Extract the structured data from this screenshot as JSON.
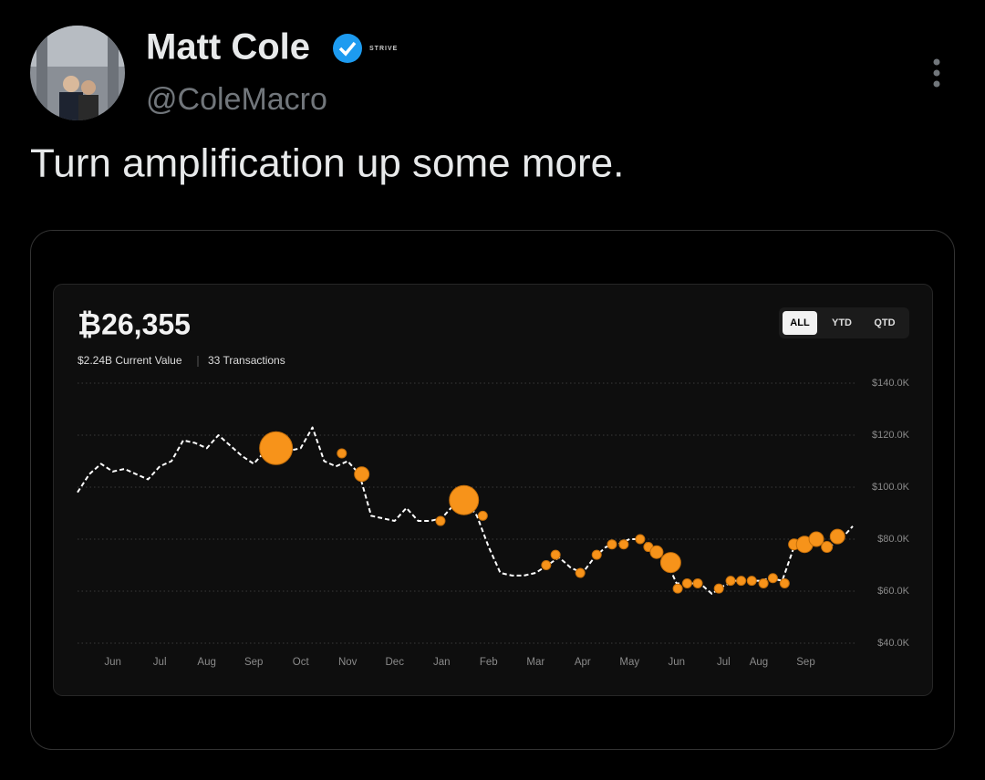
{
  "tweet": {
    "name": "Matt Cole",
    "badge": "STRIVE",
    "handle": "@ColeMacro",
    "text": "Turn amplification up some more."
  },
  "chart_data": {
    "type": "line",
    "title": "₿26,355",
    "subtitle_value": "$2.24B Current Value",
    "subtitle_count": "33 Transactions",
    "range_buttons": [
      "ALL",
      "YTD",
      "QTD"
    ],
    "selected_range": "ALL",
    "categories": [
      null,
      null,
      null,
      "Jun",
      null,
      null,
      null,
      "Jul",
      null,
      null,
      null,
      "Aug",
      null,
      null,
      null,
      "Sep",
      null,
      null,
      null,
      "Oct",
      null,
      null,
      null,
      "Nov",
      null,
      null,
      null,
      "Dec",
      null,
      null,
      null,
      "Jan",
      null,
      null,
      null,
      "Feb",
      null,
      null,
      null,
      "Mar",
      null,
      null,
      null,
      "Apr",
      null,
      null,
      null,
      "May",
      null,
      null,
      null,
      "Jun",
      null,
      null,
      null,
      "Jul",
      null,
      null,
      "Aug",
      null,
      null,
      null,
      "Sep",
      null,
      null,
      null,
      null
    ],
    "series": [
      {
        "color": "#ffffff",
        "values": [
          98000,
          105000,
          109000,
          106000,
          107000,
          105000,
          103000,
          108000,
          110000,
          118000,
          117000,
          115000,
          120000,
          116000,
          112000,
          109000,
          114000,
          110000,
          114000,
          115000,
          123000,
          110000,
          108000,
          110000,
          105000,
          89000,
          88000,
          87000,
          92000,
          87000,
          87000,
          88000,
          93000,
          95000,
          89000,
          77000,
          67000,
          66000,
          66000,
          67000,
          70000,
          73000,
          69000,
          67000,
          73000,
          77000,
          78000,
          80000,
          80000,
          76000,
          73000,
          63000,
          63000,
          63000,
          59000,
          62000,
          64000,
          64000,
          64000,
          65000,
          64000,
          77000,
          78000,
          80000,
          77000,
          80000,
          85000
        ]
      }
    ],
    "transactions": {
      "color": "#f7931a",
      "x": [
        16.9,
        22.5,
        24.2,
        30.9,
        32.9,
        34.5,
        39.9,
        40.7,
        42.8,
        44.2,
        45.5,
        46.5,
        47.9,
        48.6,
        49.3,
        50.5,
        51.1,
        51.9,
        52.8,
        54.6,
        55.6,
        56.5,
        57.4,
        58.4,
        59.2,
        60.2,
        61.0,
        61.9,
        62.9,
        63.8,
        64.7
      ],
      "values": [
        115000,
        113000,
        105000,
        87000,
        95000,
        89000,
        70000,
        74000,
        67000,
        74000,
        78000,
        78000,
        80000,
        77000,
        75000,
        71000,
        61000,
        63000,
        63000,
        61000,
        64000,
        64000,
        64000,
        63000,
        65000,
        63000,
        78000,
        78000,
        80000,
        77000,
        81000
      ],
      "sizes": [
        18,
        5,
        8,
        5,
        16,
        5,
        5,
        5,
        5,
        5,
        5,
        5,
        5,
        5,
        7,
        11,
        5,
        5,
        5,
        5,
        5,
        5,
        5,
        5,
        5,
        5,
        6,
        9,
        8,
        6,
        8
      ]
    },
    "ylim": [
      40000,
      140000
    ],
    "yticks": [
      {
        "value": 40000,
        "label": "$40.0K"
      },
      {
        "value": 60000,
        "label": "$60.0K"
      },
      {
        "value": 80000,
        "label": "$80.0K"
      },
      {
        "value": 100000,
        "label": "$100.0K"
      },
      {
        "value": 120000,
        "label": "$120.0K"
      },
      {
        "value": 140000,
        "label": "$140.0K"
      }
    ],
    "grid": true
  }
}
